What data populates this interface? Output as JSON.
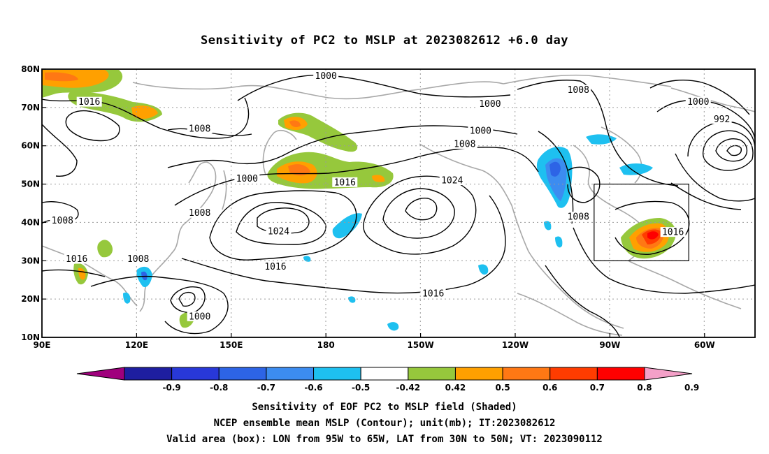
{
  "title": "Sensitivity of PC2 to MSLP at 2023082612 +6.0 day",
  "lat_labels": [
    "80N",
    "70N",
    "60N",
    "50N",
    "40N",
    "30N",
    "20N",
    "10N"
  ],
  "lon_labels": [
    "90E",
    "120E",
    "150E",
    "180",
    "150W",
    "120W",
    "90W",
    "60W"
  ],
  "contour_labels": [
    {
      "text": "1000",
      "lon": 180,
      "lat": 78.3
    },
    {
      "text": "1016",
      "lon": 105,
      "lat": 71.5
    },
    {
      "text": "1008",
      "lon": 140,
      "lat": 64.5
    },
    {
      "text": "1000",
      "lon": 155,
      "lat": 51.5
    },
    {
      "text": "1008",
      "lon": 140,
      "lat": 42.5
    },
    {
      "text": "1008",
      "lon": 96.5,
      "lat": 40.5
    },
    {
      "text": "1016",
      "lon": 101,
      "lat": 30.5
    },
    {
      "text": "1008",
      "lon": 120.5,
      "lat": 30.5
    },
    {
      "text": "1024",
      "lon": 165,
      "lat": 37.7
    },
    {
      "text": "1016",
      "lon": 164,
      "lat": 28.5
    },
    {
      "text": "1016",
      "lon": 186,
      "lat": 50.5
    },
    {
      "text": "1024",
      "lon": 220,
      "lat": 51
    },
    {
      "text": "1016",
      "lon": 214,
      "lat": 21.5
    },
    {
      "text": "1000",
      "lon": 140,
      "lat": 15.5
    },
    {
      "text": "1000",
      "lon": 232,
      "lat": 71
    },
    {
      "text": "1000",
      "lon": 229,
      "lat": 64
    },
    {
      "text": "1008",
      "lon": 224,
      "lat": 60.5
    },
    {
      "text": "1008",
      "lon": 260,
      "lat": 74.6
    },
    {
      "text": "1008",
      "lon": 260,
      "lat": 41.5
    },
    {
      "text": "1016",
      "lon": 290,
      "lat": 37.5
    },
    {
      "text": "1000",
      "lon": 298,
      "lat": 71.5
    },
    {
      "text": "992",
      "lon": 305.5,
      "lat": 67
    }
  ],
  "valid_box": {
    "lon_from": 265,
    "lon_to": 295,
    "lat_from": 30,
    "lat_to": 50
  },
  "colorbar": {
    "colors": [
      "#a0007d",
      "#1e1ea0",
      "#2838d8",
      "#2d64e6",
      "#3c8cf0",
      "#1ec0f0",
      "#ffffff",
      "#96c83c",
      "#ffa000",
      "#ff7814",
      "#ff3c00",
      "#ff0000",
      "#f4a0c8"
    ],
    "labels": [
      "-0.9",
      "-0.8",
      "-0.7",
      "-0.6",
      "-0.5",
      "-0.42",
      "0.42",
      "0.5",
      "0.6",
      "0.7",
      "0.8",
      "0.9"
    ]
  },
  "captions": [
    "Sensitivity of EOF PC2 to MSLP field (Shaded)",
    "NCEP ensemble mean MSLP (Contour); unit(mb); IT:2023082612",
    "Valid area (box): LON from 95W to 65W, LAT from 30N to 50N; VT: 2023090112"
  ]
}
